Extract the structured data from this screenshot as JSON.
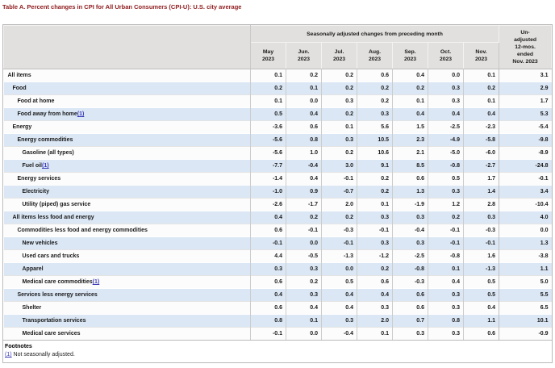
{
  "title": "Table A. Percent changes in CPI for All Urban Consumers (CPI-U): U.S. city average",
  "table": {
    "group_header": "Seasonally adjusted changes from preceding month",
    "unadjusted_header": "Un-\nadjusted\n12-mos.\nended\nNov. 2023",
    "month_columns": [
      "May\n2023",
      "Jun.\n2023",
      "Jul.\n2023",
      "Aug.\n2023",
      "Sep.\n2023",
      "Oct.\n2023",
      "Nov.\n2023"
    ],
    "rows": [
      {
        "label": "All items",
        "indent": 0,
        "footnote": false,
        "values": [
          "0.1",
          "0.2",
          "0.2",
          "0.6",
          "0.4",
          "0.0",
          "0.1"
        ],
        "unadjusted": "3.1"
      },
      {
        "label": "Food",
        "indent": 1,
        "footnote": false,
        "values": [
          "0.2",
          "0.1",
          "0.2",
          "0.2",
          "0.2",
          "0.3",
          "0.2"
        ],
        "unadjusted": "2.9"
      },
      {
        "label": "Food at home",
        "indent": 2,
        "footnote": false,
        "values": [
          "0.1",
          "0.0",
          "0.3",
          "0.2",
          "0.1",
          "0.3",
          "0.1"
        ],
        "unadjusted": "1.7"
      },
      {
        "label": "Food away from home",
        "indent": 2,
        "footnote": true,
        "values": [
          "0.5",
          "0.4",
          "0.2",
          "0.3",
          "0.4",
          "0.4",
          "0.4"
        ],
        "unadjusted": "5.3"
      },
      {
        "label": "Energy",
        "indent": 1,
        "footnote": false,
        "values": [
          "-3.6",
          "0.6",
          "0.1",
          "5.6",
          "1.5",
          "-2.5",
          "-2.3"
        ],
        "unadjusted": "-5.4"
      },
      {
        "label": "Energy commodities",
        "indent": 2,
        "footnote": false,
        "values": [
          "-5.6",
          "0.8",
          "0.3",
          "10.5",
          "2.3",
          "-4.9",
          "-5.8"
        ],
        "unadjusted": "-9.8"
      },
      {
        "label": "Gasoline (all types)",
        "indent": 3,
        "footnote": false,
        "values": [
          "-5.6",
          "1.0",
          "0.2",
          "10.6",
          "2.1",
          "-5.0",
          "-6.0"
        ],
        "unadjusted": "-8.9"
      },
      {
        "label": "Fuel oil",
        "indent": 3,
        "footnote": true,
        "values": [
          "-7.7",
          "-0.4",
          "3.0",
          "9.1",
          "8.5",
          "-0.8",
          "-2.7"
        ],
        "unadjusted": "-24.8"
      },
      {
        "label": "Energy services",
        "indent": 2,
        "footnote": false,
        "values": [
          "-1.4",
          "0.4",
          "-0.1",
          "0.2",
          "0.6",
          "0.5",
          "1.7"
        ],
        "unadjusted": "-0.1"
      },
      {
        "label": "Electricity",
        "indent": 3,
        "footnote": false,
        "values": [
          "-1.0",
          "0.9",
          "-0.7",
          "0.2",
          "1.3",
          "0.3",
          "1.4"
        ],
        "unadjusted": "3.4"
      },
      {
        "label": "Utility (piped) gas service",
        "indent": 3,
        "footnote": false,
        "values": [
          "-2.6",
          "-1.7",
          "2.0",
          "0.1",
          "-1.9",
          "1.2",
          "2.8"
        ],
        "unadjusted": "-10.4"
      },
      {
        "label": "All items less food and energy",
        "indent": 1,
        "footnote": false,
        "values": [
          "0.4",
          "0.2",
          "0.2",
          "0.3",
          "0.3",
          "0.2",
          "0.3"
        ],
        "unadjusted": "4.0"
      },
      {
        "label": "Commodities less food and energy commodities",
        "indent": 2,
        "footnote": false,
        "values": [
          "0.6",
          "-0.1",
          "-0.3",
          "-0.1",
          "-0.4",
          "-0.1",
          "-0.3"
        ],
        "unadjusted": "0.0"
      },
      {
        "label": "New vehicles",
        "indent": 3,
        "footnote": false,
        "values": [
          "-0.1",
          "0.0",
          "-0.1",
          "0.3",
          "0.3",
          "-0.1",
          "-0.1"
        ],
        "unadjusted": "1.3"
      },
      {
        "label": "Used cars and trucks",
        "indent": 3,
        "footnote": false,
        "values": [
          "4.4",
          "-0.5",
          "-1.3",
          "-1.2",
          "-2.5",
          "-0.8",
          "1.6"
        ],
        "unadjusted": "-3.8"
      },
      {
        "label": "Apparel",
        "indent": 3,
        "footnote": false,
        "values": [
          "0.3",
          "0.3",
          "0.0",
          "0.2",
          "-0.8",
          "0.1",
          "-1.3"
        ],
        "unadjusted": "1.1"
      },
      {
        "label": "Medical care commodities",
        "indent": 3,
        "footnote": true,
        "values": [
          "0.6",
          "0.2",
          "0.5",
          "0.6",
          "-0.3",
          "0.4",
          "0.5"
        ],
        "unadjusted": "5.0"
      },
      {
        "label": "Services less energy services",
        "indent": 2,
        "footnote": false,
        "values": [
          "0.4",
          "0.3",
          "0.4",
          "0.4",
          "0.6",
          "0.3",
          "0.5"
        ],
        "unadjusted": "5.5"
      },
      {
        "label": "Shelter",
        "indent": 3,
        "footnote": false,
        "values": [
          "0.6",
          "0.4",
          "0.4",
          "0.3",
          "0.6",
          "0.3",
          "0.4"
        ],
        "unadjusted": "6.5"
      },
      {
        "label": "Transportation services",
        "indent": 3,
        "footnote": false,
        "values": [
          "0.8",
          "0.1",
          "0.3",
          "2.0",
          "0.7",
          "0.8",
          "1.1"
        ],
        "unadjusted": "10.1"
      },
      {
        "label": "Medical care services",
        "indent": 3,
        "footnote": false,
        "values": [
          "-0.1",
          "0.0",
          "-0.4",
          "0.1",
          "0.3",
          "0.3",
          "0.6"
        ],
        "unadjusted": "-0.9"
      }
    ]
  },
  "footnotes": {
    "heading": "Footnotes",
    "items": [
      {
        "marker": "(1)",
        "text": " Not seasonally adjusted."
      }
    ]
  },
  "colors": {
    "title_maroon": "#8e1a1c",
    "header_bg": "#e2e0de",
    "stripe_blue": "#dbe7f5",
    "link_blue": "#3a3ab8",
    "outer_border": "#b9b9b9",
    "grid_vertical": "#cccccc"
  }
}
